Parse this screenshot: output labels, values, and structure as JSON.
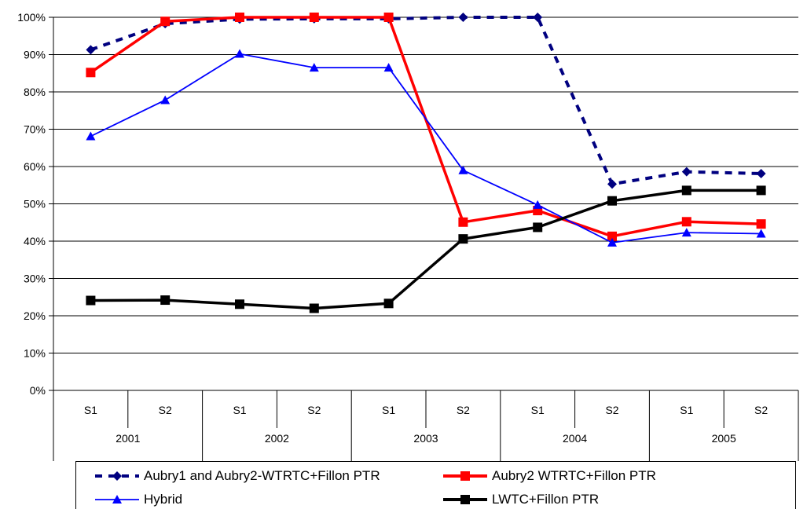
{
  "chart_data": {
    "type": "line",
    "y_axis": {
      "min": 0,
      "max": 100,
      "step": 10,
      "tick_labels": [
        "0%",
        "10%",
        "20%",
        "30%",
        "40%",
        "50%",
        "60%",
        "70%",
        "80%",
        "90%",
        "100%"
      ],
      "grid": true
    },
    "x_axis": {
      "categories": [
        "S1",
        "S2",
        "S1",
        "S2",
        "S1",
        "S2",
        "S1",
        "S2",
        "S1",
        "S2"
      ],
      "groups": [
        "2001",
        "2002",
        "2003",
        "2004",
        "2005"
      ]
    },
    "legend_position": "bottom",
    "series": [
      {
        "name": "Aubry1 and Aubry2-WTRTC+Fillon PTR",
        "color": "#000080",
        "marker": "diamond",
        "line": "dashed",
        "values": [
          91.3,
          98.3,
          99.5,
          99.6,
          99.6,
          100,
          100,
          55.3,
          58.6,
          58.1
        ]
      },
      {
        "name": "Aubry2 WTRTC+Fillon PTR",
        "color": "#ff0000",
        "marker": "square",
        "line": "solid-thick",
        "values": [
          85.2,
          98.9,
          100,
          100,
          100,
          45.1,
          48.2,
          41.3,
          45.2,
          44.6
        ]
      },
      {
        "name": "Hybrid",
        "color": "#0000ff",
        "marker": "triangle",
        "line": "solid-thin",
        "values": [
          68.1,
          77.8,
          90.2,
          86.5,
          86.5,
          59.0,
          49.7,
          39.6,
          42.3,
          42.0
        ]
      },
      {
        "name": "LWTC+Fillon PTR",
        "color": "#000000",
        "marker": "square",
        "line": "solid-thick",
        "values": [
          24.1,
          24.2,
          23.1,
          22.0,
          23.3,
          40.6,
          43.7,
          50.8,
          53.6,
          53.6
        ]
      }
    ]
  }
}
